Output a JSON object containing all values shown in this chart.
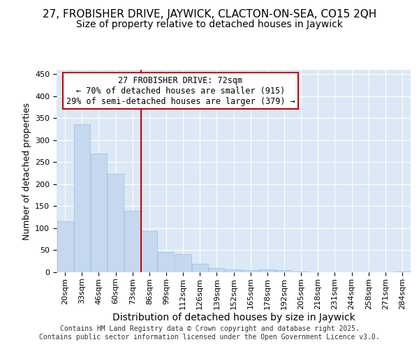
{
  "title": "27, FROBISHER DRIVE, JAYWICK, CLACTON-ON-SEA, CO15 2QH",
  "subtitle": "Size of property relative to detached houses in Jaywick",
  "xlabel": "Distribution of detached houses by size in Jaywick",
  "ylabel": "Number of detached properties",
  "categories": [
    "20sqm",
    "33sqm",
    "46sqm",
    "60sqm",
    "73sqm",
    "86sqm",
    "99sqm",
    "112sqm",
    "126sqm",
    "139sqm",
    "152sqm",
    "165sqm",
    "178sqm",
    "192sqm",
    "205sqm",
    "218sqm",
    "231sqm",
    "244sqm",
    "258sqm",
    "271sqm",
    "284sqm"
  ],
  "values": [
    116,
    336,
    269,
    223,
    140,
    93,
    46,
    42,
    19,
    10,
    6,
    5,
    6,
    5,
    2,
    0,
    0,
    0,
    0,
    0,
    2
  ],
  "bar_color": "#c5d8f0",
  "bar_edge_color": "#9bbede",
  "red_line_x": 4.5,
  "annotation_title": "27 FROBISHER DRIVE: 72sqm",
  "annotation_line1": "← 70% of detached houses are smaller (915)",
  "annotation_line2": "29% of semi-detached houses are larger (379) →",
  "annotation_box_color": "#ffffff",
  "annotation_box_edge_color": "#cc0000",
  "red_line_color": "#cc0000",
  "ylim": [
    0,
    460
  ],
  "yticks": [
    0,
    50,
    100,
    150,
    200,
    250,
    300,
    350,
    400,
    450
  ],
  "background_color": "#dce8f5",
  "fig_background": "#ffffff",
  "footer_line1": "Contains HM Land Registry data © Crown copyright and database right 2025.",
  "footer_line2": "Contains public sector information licensed under the Open Government Licence v3.0.",
  "title_fontsize": 11,
  "subtitle_fontsize": 10,
  "xlabel_fontsize": 10,
  "ylabel_fontsize": 9,
  "tick_fontsize": 8,
  "annotation_fontsize": 8.5,
  "footer_fontsize": 7
}
